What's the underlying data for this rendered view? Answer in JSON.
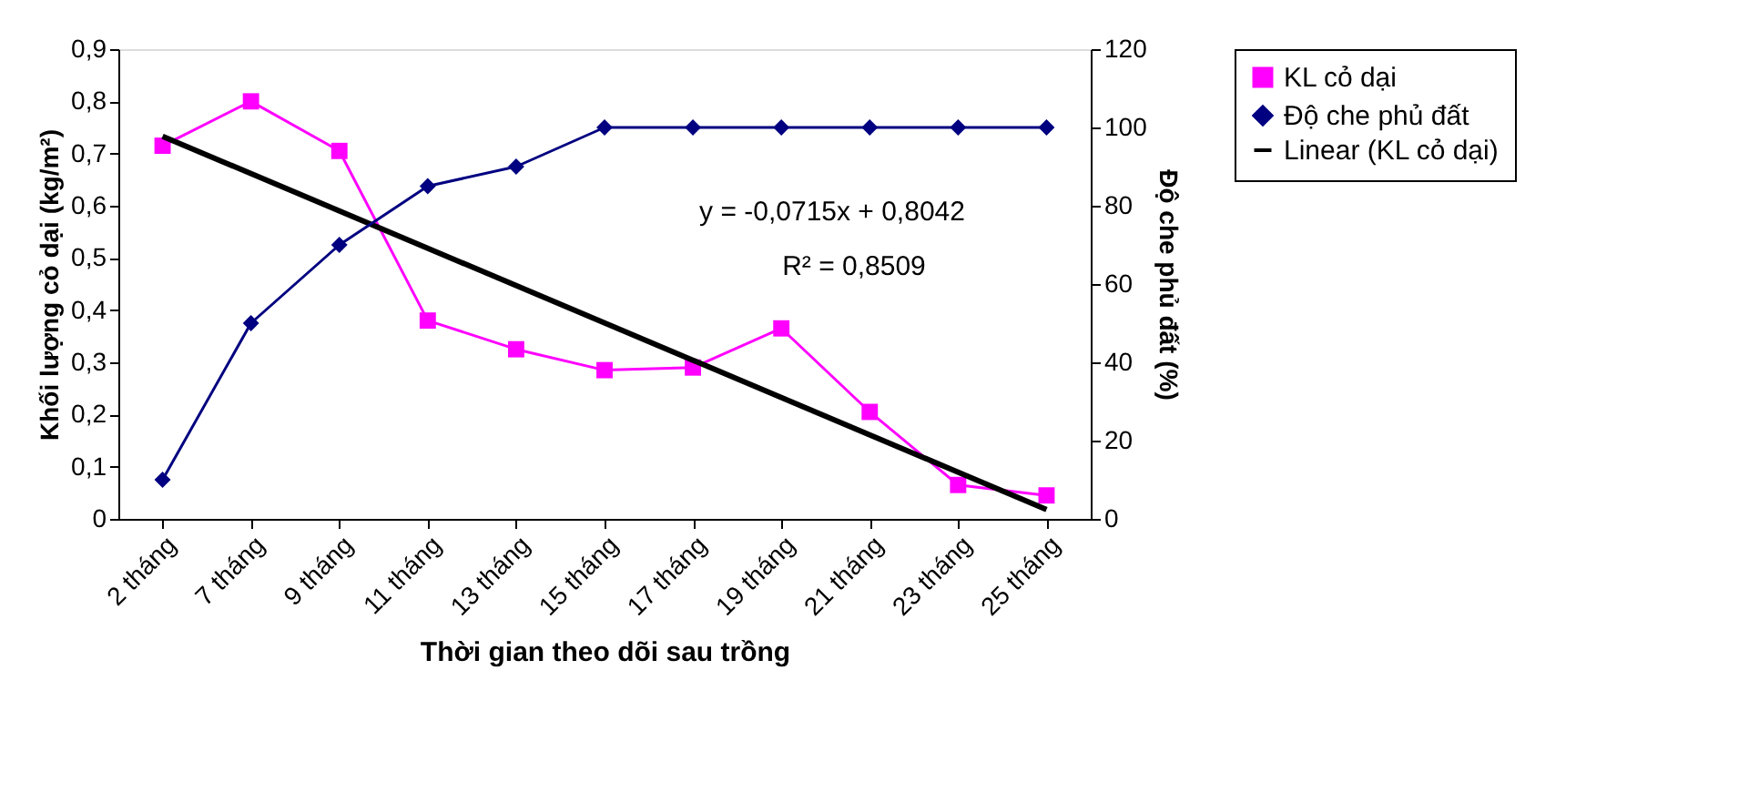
{
  "chart_data": {
    "type": "line",
    "xlabel": "Thời gian theo dõi sau trồng",
    "ylabel": "Khối lượng cỏ dại (kg/m²)",
    "y2label": "Độ che phủ đất (%)",
    "categories": [
      "2 tháng",
      "7 tháng",
      "9 tháng",
      "11 tháng",
      "13 tháng",
      "15 tháng",
      "17 tháng",
      "19 tháng",
      "21 tháng",
      "23 tháng",
      "25 tháng"
    ],
    "series": [
      {
        "name": "KL cỏ dại",
        "color": "#ff00ff",
        "marker": "square",
        "values": [
          0.715,
          0.8,
          0.705,
          0.38,
          0.325,
          0.285,
          0.29,
          0.365,
          0.205,
          0.065,
          0.045
        ]
      },
      {
        "name": "Độ che phủ đất",
        "color": "#000080",
        "marker": "diamond",
        "axis": "y2",
        "values": [
          10,
          50,
          70,
          85,
          90,
          100,
          100,
          100,
          100,
          100,
          100
        ]
      },
      {
        "name": "Linear (KL cỏ dại)",
        "color": "#000000",
        "marker": "none",
        "type": "line",
        "x": [
          "2 tháng",
          "25 tháng"
        ],
        "values": [
          0.733,
          0.018
        ]
      }
    ],
    "ylim": [
      0,
      0.9
    ],
    "yticks": [
      {
        "value": 0,
        "label": "0"
      },
      {
        "value": 0.1,
        "label": "0,1"
      },
      {
        "value": 0.2,
        "label": "0,2"
      },
      {
        "value": 0.3,
        "label": "0,3"
      },
      {
        "value": 0.4,
        "label": "0,4"
      },
      {
        "value": 0.5,
        "label": "0,5"
      },
      {
        "value": 0.6,
        "label": "0,6"
      },
      {
        "value": 0.7,
        "label": "0,7"
      },
      {
        "value": 0.8,
        "label": "0,8"
      },
      {
        "value": 0.9,
        "label": "0,9"
      }
    ],
    "y2lim": [
      0,
      120
    ],
    "y2ticks": [
      0,
      20,
      40,
      60,
      80,
      100,
      120
    ],
    "annotations": [
      "y = -0,0715x + 0,8042",
      "R² = 0,8509"
    ],
    "legend": "right",
    "grid": false
  }
}
